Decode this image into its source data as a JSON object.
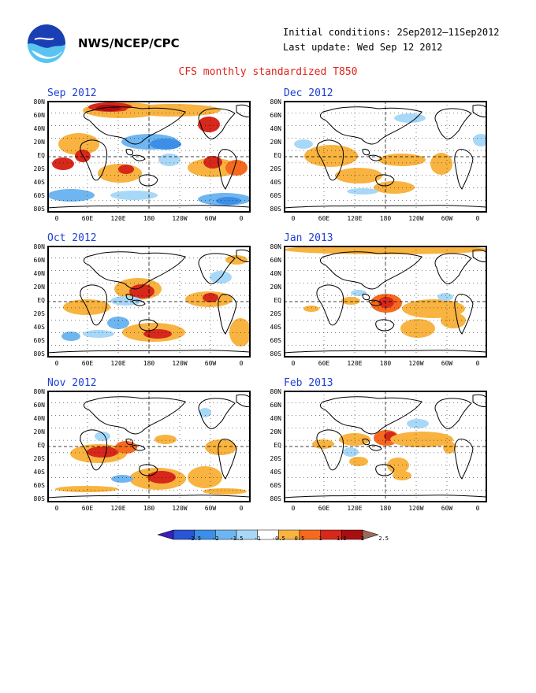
{
  "header": {
    "org": "NWS/NCEP/CPC",
    "initial_conditions": "Initial conditions: 2Sep2012–11Sep2012",
    "last_update": "Last update: Wed Sep 12 2012",
    "main_title": "CFS monthly standardized T850",
    "logo_icon": "noaa-logo-icon"
  },
  "lat_labels": [
    "80N",
    "60N",
    "40N",
    "20N",
    "EQ",
    "20S",
    "40S",
    "60S",
    "80S"
  ],
  "lon_labels": [
    "0",
    "60E",
    "120E",
    "180",
    "120W",
    "60W",
    "0"
  ],
  "panels": [
    {
      "id": "sep2012",
      "title": "Sep 2012"
    },
    {
      "id": "oct2012",
      "title": "Oct 2012"
    },
    {
      "id": "nov2012",
      "title": "Nov 2012"
    },
    {
      "id": "dec2012",
      "title": "Dec 2012"
    },
    {
      "id": "jan2013",
      "title": "Jan 2013"
    },
    {
      "id": "feb2013",
      "title": "Feb 2013"
    }
  ],
  "colorbar": {
    "labels": [
      "-2.5",
      "-2",
      "-1.5",
      "-1",
      "-0.5",
      "0.5",
      "1",
      "1.5",
      "2",
      "2.5"
    ],
    "colors": [
      "#3a1fb8",
      "#2a55d6",
      "#3c8ee6",
      "#6fb6f0",
      "#a8d8f8",
      "#ffffff",
      "#f8b340",
      "#f56a1e",
      "#d6281b",
      "#a80f10",
      "#9a6a5a"
    ]
  },
  "colors": {
    "warm1": "#f8b340",
    "warm2": "#f56a1e",
    "warm3": "#d6281b",
    "warm4": "#a80f10",
    "cool1": "#a8d8f8",
    "cool2": "#6fb6f0",
    "cool3": "#3c8ee6"
  }
}
